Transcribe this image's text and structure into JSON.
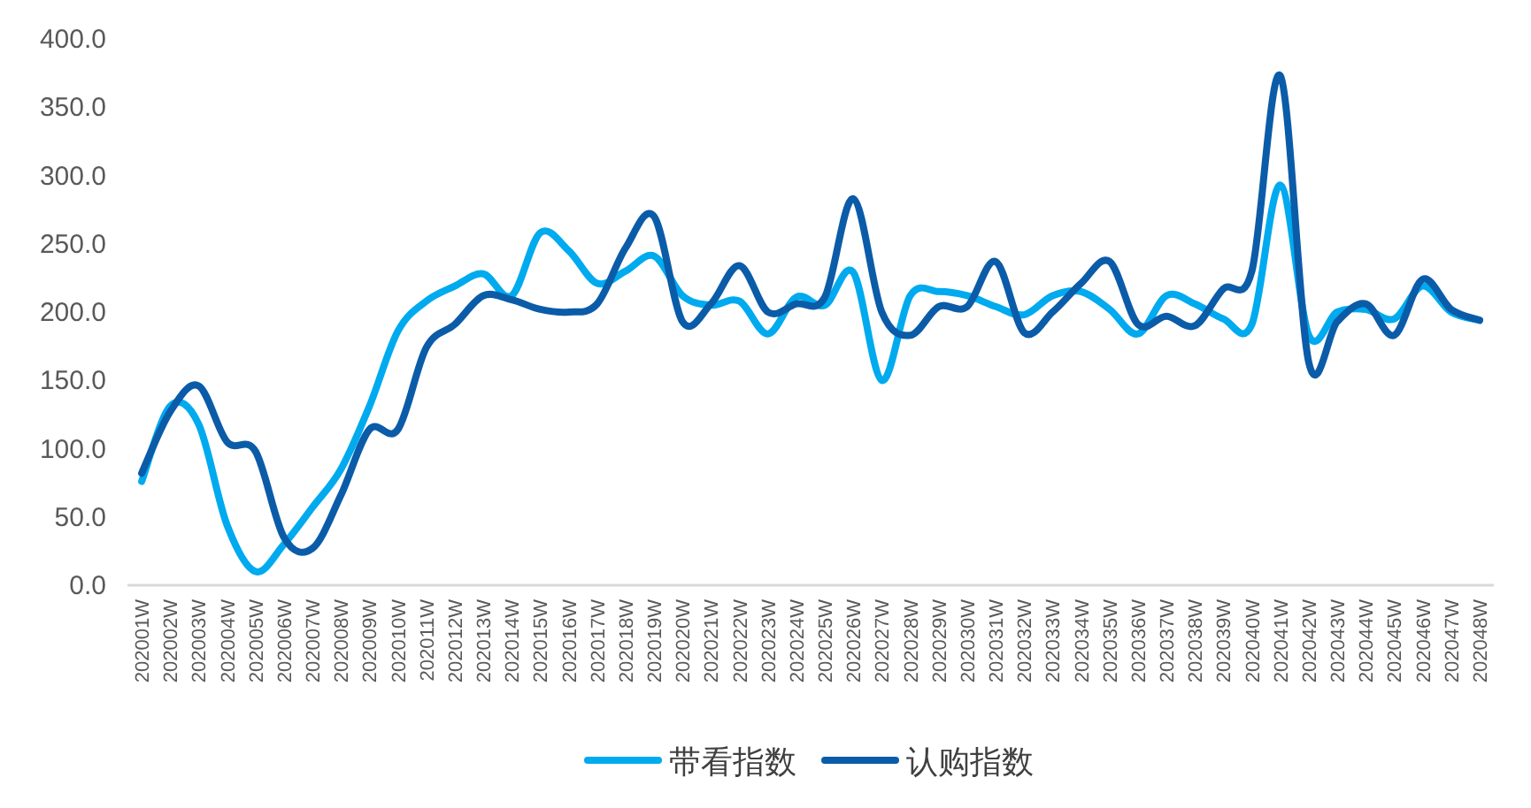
{
  "chart_data": {
    "type": "line",
    "categories": [
      "202001W",
      "202002W",
      "202003W",
      "202004W",
      "202005W",
      "202006W",
      "202007W",
      "202008W",
      "202009W",
      "202010W",
      "202011W",
      "202012W",
      "202013W",
      "202014W",
      "202015W",
      "202016W",
      "202017W",
      "202018W",
      "202019W",
      "202020W",
      "202021W",
      "202022W",
      "202023W",
      "202024W",
      "202025W",
      "202026W",
      "202027W",
      "202028W",
      "202029W",
      "202030W",
      "202031W",
      "202032W",
      "202033W",
      "202034W",
      "202035W",
      "202036W",
      "202037W",
      "202038W",
      "202039W",
      "202040W",
      "202041W",
      "202042W",
      "202043W",
      "202044W",
      "202045W",
      "202046W",
      "202047W",
      "202048W"
    ],
    "series": [
      {
        "name": "带看指数",
        "color": "#00aaef",
        "values": [
          76,
          131,
          118,
          44,
          10,
          30,
          57,
          85,
          131,
          186,
          208,
          219,
          228,
          212,
          258,
          245,
          221,
          230,
          241,
          212,
          205,
          208,
          184,
          211,
          205,
          229,
          150,
          212,
          215,
          212,
          204,
          198,
          212,
          215,
          202,
          184,
          212,
          206,
          195,
          191,
          293,
          183,
          200,
          202,
          195,
          219,
          200,
          194
        ]
      },
      {
        "name": "认购指数",
        "color": "#0b5ca8",
        "values": [
          82,
          127,
          146,
          105,
          98,
          35,
          27,
          66,
          114,
          114,
          174,
          191,
          212,
          209,
          202,
          200,
          206,
          247,
          270,
          193,
          206,
          234,
          200,
          206,
          211,
          283,
          200,
          183,
          204,
          204,
          237,
          185,
          200,
          221,
          237,
          191,
          197,
          190,
          217,
          230,
          373,
          163,
          193,
          206,
          183,
          224,
          202,
          194
        ]
      }
    ],
    "ylim": [
      0,
      400
    ],
    "yticks": [
      {
        "value": 0,
        "label": "0.0"
      },
      {
        "value": 50,
        "label": "50.0"
      },
      {
        "value": 100,
        "label": "100.0"
      },
      {
        "value": 150,
        "label": "150.0"
      },
      {
        "value": 200,
        "label": "200.0"
      },
      {
        "value": 250,
        "label": "250.0"
      },
      {
        "value": 300,
        "label": "300.0"
      },
      {
        "value": 350,
        "label": "350.0"
      },
      {
        "value": 400,
        "label": "400.0"
      }
    ],
    "grid": false,
    "legend": "bottom",
    "marker": "none",
    "line_style": "solid"
  }
}
